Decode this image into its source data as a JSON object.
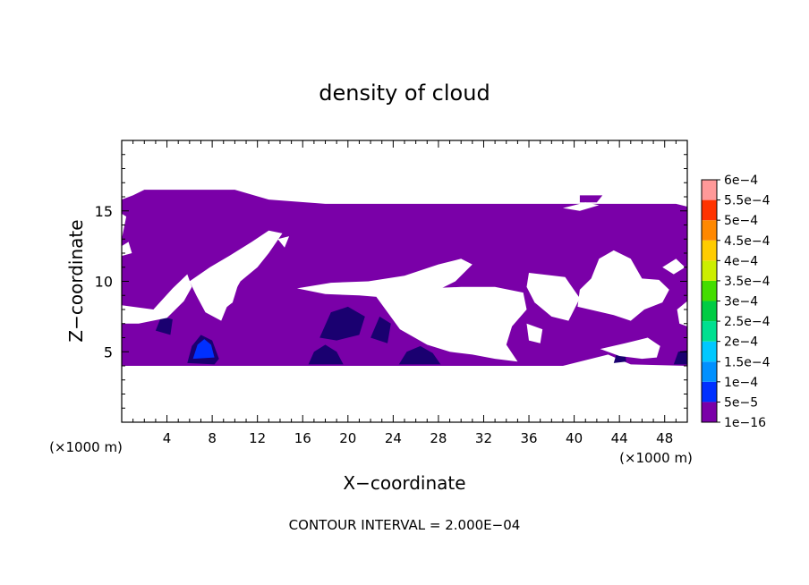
{
  "chart_data": {
    "type": "heatmap",
    "title": "density of cloud",
    "xlabel": "X−coordinate",
    "ylabel": "Z−coordinate",
    "x_unit_left": "(×1000 m)",
    "x_unit_right": "(×1000 m)",
    "footer": "CONTOUR INTERVAL = 2.000E−04",
    "xlim": [
      0,
      50
    ],
    "ylim": [
      0,
      20
    ],
    "x_ticks": [
      {
        "v": 4,
        "label": "4"
      },
      {
        "v": 8,
        "label": "8"
      },
      {
        "v": 12,
        "label": "12"
      },
      {
        "v": 16,
        "label": "16"
      },
      {
        "v": 20,
        "label": "20"
      },
      {
        "v": 24,
        "label": "24"
      },
      {
        "v": 28,
        "label": "28"
      },
      {
        "v": 32,
        "label": "32"
      },
      {
        "v": 36,
        "label": "36"
      },
      {
        "v": 40,
        "label": "40"
      },
      {
        "v": 44,
        "label": "44"
      },
      {
        "v": 48,
        "label": "48"
      }
    ],
    "y_ticks": [
      {
        "v": 5,
        "label": "5"
      },
      {
        "v": 10,
        "label": "10"
      },
      {
        "v": 15,
        "label": "15"
      }
    ],
    "colorbar": [
      {
        "label": "1e−16",
        "color": "#7a00a8"
      },
      {
        "label": "5e−5",
        "color": "#1a0070"
      },
      {
        "label": "1e−4",
        "color": "#0030ff"
      },
      {
        "label": "1.5e−4",
        "color": "#0090ff"
      },
      {
        "label": "2e−4",
        "color": "#00c8ff"
      },
      {
        "label": "2.5e−4",
        "color": "#00e090"
      },
      {
        "label": "3e−4",
        "color": "#00cc44"
      },
      {
        "label": "3.5e−4",
        "color": "#44dd00"
      },
      {
        "label": "4e−4",
        "color": "#ccee00"
      },
      {
        "label": "4.5e−4",
        "color": "#ffcc00"
      },
      {
        "label": "5e−4",
        "color": "#ff8800"
      },
      {
        "label": "5.5e−4",
        "color": "#ff3300"
      },
      {
        "label": "6e−4",
        "color": "#ff6680"
      }
    ],
    "colorbar_top_color": "#ff9999",
    "background_level_color": "#7a00a8",
    "regions": [
      {
        "level": "1e−16",
        "polygon": [
          [
            0,
            4
          ],
          [
            0,
            15.8
          ],
          [
            1,
            16.1
          ],
          [
            2,
            16.5
          ],
          [
            10,
            16.5
          ],
          [
            13,
            15.8
          ],
          [
            18,
            15.5
          ],
          [
            49,
            15.5
          ],
          [
            50,
            15.3
          ],
          [
            50,
            4
          ],
          [
            45,
            4.1
          ],
          [
            43,
            4.8
          ],
          [
            39,
            4
          ],
          [
            30,
            4
          ],
          [
            28,
            4
          ],
          [
            0,
            4
          ]
        ]
      },
      {
        "level": "5e−5",
        "polygon": [
          [
            5.8,
            4.2
          ],
          [
            6.2,
            5.4
          ],
          [
            7.0,
            6.2
          ],
          [
            8.0,
            5.8
          ],
          [
            8.6,
            4.5
          ],
          [
            8.2,
            4.1
          ]
        ]
      },
      {
        "level": "1e−4",
        "polygon": [
          [
            6.3,
            4.5
          ],
          [
            6.7,
            5.5
          ],
          [
            7.3,
            5.9
          ],
          [
            7.9,
            5.5
          ],
          [
            8.2,
            4.6
          ]
        ]
      },
      {
        "level": "5e−5",
        "polygon": [
          [
            16.5,
            4.1
          ],
          [
            17.0,
            5.0
          ],
          [
            18.0,
            5.5
          ],
          [
            19.0,
            5.0
          ],
          [
            19.6,
            4.1
          ]
        ]
      },
      {
        "level": "5e−5",
        "polygon": [
          [
            24.5,
            4.1
          ],
          [
            25.2,
            5.0
          ],
          [
            26.4,
            5.4
          ],
          [
            27.5,
            4.9
          ],
          [
            28.2,
            4.1
          ]
        ]
      },
      {
        "level": "5e−5",
        "polygon": [
          [
            17.5,
            6.0
          ],
          [
            18.5,
            7.8
          ],
          [
            20.0,
            8.2
          ],
          [
            21.5,
            7.5
          ],
          [
            21.0,
            6.2
          ],
          [
            19.0,
            5.8
          ]
        ]
      },
      {
        "level": "5e−5",
        "polygon": [
          [
            22.0,
            6.0
          ],
          [
            22.8,
            7.5
          ],
          [
            23.8,
            7.0
          ],
          [
            23.5,
            5.6
          ]
        ]
      },
      {
        "level": "5e−5",
        "polygon": [
          [
            3.0,
            6.5
          ],
          [
            3.5,
            7.5
          ],
          [
            4.5,
            7.3
          ],
          [
            4.3,
            6.2
          ]
        ]
      },
      {
        "level": "5e−5",
        "polygon": [
          [
            43.5,
            4.2
          ],
          [
            43.8,
            5.0
          ],
          [
            44.5,
            5.0
          ],
          [
            44.6,
            4.3
          ]
        ]
      },
      {
        "level": "5e−5",
        "polygon": [
          [
            48.8,
            4.1
          ],
          [
            49.2,
            5.0
          ],
          [
            50,
            5.1
          ],
          [
            50,
            4.1
          ]
        ]
      }
    ],
    "gaps": [
      [
        [
          0,
          8.3
        ],
        [
          2.8,
          8.0
        ],
        [
          4.5,
          9.5
        ],
        [
          5.8,
          10.5
        ],
        [
          6.2,
          9.6
        ],
        [
          5.5,
          8.6
        ],
        [
          4.0,
          7.4
        ],
        [
          1.5,
          7.0
        ],
        [
          0,
          7.0
        ]
      ],
      [
        [
          0,
          12.5
        ],
        [
          0.6,
          12.8
        ],
        [
          0.9,
          12.0
        ],
        [
          0,
          11.8
        ]
      ],
      [
        [
          6.0,
          10.0
        ],
        [
          7.8,
          11.0
        ],
        [
          9.5,
          11.8
        ],
        [
          11.5,
          12.8
        ],
        [
          13.0,
          13.6
        ],
        [
          14.2,
          13.4
        ],
        [
          13.0,
          12.0
        ],
        [
          12.0,
          11.0
        ],
        [
          10.5,
          10.0
        ],
        [
          9.5,
          8.6
        ],
        [
          8.8,
          7.2
        ],
        [
          7.4,
          7.8
        ],
        [
          6.6,
          9.0
        ]
      ],
      [
        [
          7.5,
          8.5
        ],
        [
          8.5,
          10.2
        ],
        [
          10.3,
          9.8
        ],
        [
          9.8,
          8.5
        ],
        [
          8.7,
          7.8
        ]
      ],
      [
        [
          13.8,
          13.0
        ],
        [
          14.8,
          13.2
        ],
        [
          14.4,
          12.4
        ]
      ],
      [
        [
          15.5,
          9.5
        ],
        [
          18.5,
          9.9
        ],
        [
          21.8,
          10.0
        ],
        [
          25.0,
          10.4
        ],
        [
          28.0,
          11.2
        ],
        [
          30.0,
          11.6
        ],
        [
          31.0,
          11.2
        ],
        [
          29.5,
          10.0
        ],
        [
          27.5,
          9.2
        ],
        [
          24.0,
          8.8
        ],
        [
          21.0,
          9.0
        ],
        [
          18.0,
          9.1
        ]
      ],
      [
        [
          22.5,
          8.9
        ],
        [
          24.6,
          6.6
        ],
        [
          27.0,
          5.5
        ],
        [
          29.0,
          5.0
        ],
        [
          31.0,
          4.8
        ],
        [
          33.0,
          4.5
        ],
        [
          35.0,
          4.3
        ],
        [
          34.0,
          5.5
        ],
        [
          34.5,
          6.8
        ],
        [
          35.8,
          8.0
        ],
        [
          35.5,
          9.2
        ],
        [
          33.0,
          9.6
        ],
        [
          30.0,
          9.6
        ],
        [
          27.0,
          9.5
        ],
        [
          24.5,
          9.3
        ]
      ],
      [
        [
          36.0,
          10.6
        ],
        [
          39.2,
          10.3
        ],
        [
          40.5,
          8.8
        ],
        [
          39.5,
          7.2
        ],
        [
          38.0,
          7.5
        ],
        [
          36.5,
          8.5
        ],
        [
          35.8,
          9.6
        ]
      ],
      [
        [
          35.8,
          7.0
        ],
        [
          37.2,
          6.6
        ],
        [
          37.0,
          5.6
        ],
        [
          36.0,
          5.8
        ]
      ],
      [
        [
          40.3,
          8.2
        ],
        [
          43.5,
          7.6
        ],
        [
          45.0,
          7.2
        ],
        [
          46.2,
          8.0
        ],
        [
          47.8,
          8.5
        ],
        [
          48.4,
          9.4
        ],
        [
          47.5,
          10.1
        ],
        [
          46.0,
          10.2
        ],
        [
          45.0,
          11.6
        ],
        [
          43.5,
          12.2
        ],
        [
          42.2,
          11.6
        ],
        [
          41.5,
          10.2
        ],
        [
          40.5,
          9.4
        ]
      ],
      [
        [
          42.3,
          5.2
        ],
        [
          44.5,
          5.6
        ],
        [
          46.5,
          6.0
        ],
        [
          47.6,
          5.4
        ],
        [
          47.3,
          4.6
        ],
        [
          46.0,
          4.5
        ],
        [
          44.0,
          4.7
        ]
      ],
      [
        [
          47.8,
          11.0
        ],
        [
          49.0,
          11.6
        ],
        [
          49.8,
          11.0
        ],
        [
          48.8,
          10.5
        ]
      ],
      [
        [
          49.1,
          8.0
        ],
        [
          50,
          8.6
        ],
        [
          50,
          6.8
        ],
        [
          49.3,
          7.0
        ]
      ],
      [
        [
          39.0,
          15.2
        ],
        [
          41.0,
          15.6
        ],
        [
          42.2,
          15.4
        ],
        [
          40.5,
          15.0
        ]
      ],
      [
        [
          0,
          13.0
        ],
        [
          0.4,
          14.6
        ],
        [
          0,
          14.8
        ]
      ]
    ],
    "scattered_regions": [
      [
        [
          49.5,
          14.0
        ],
        [
          50,
          14.4
        ],
        [
          50,
          13.6
        ]
      ],
      [
        [
          40.5,
          16.1
        ],
        [
          42.5,
          16.1
        ],
        [
          42.0,
          15.6
        ],
        [
          40.5,
          15.6
        ]
      ]
    ]
  }
}
